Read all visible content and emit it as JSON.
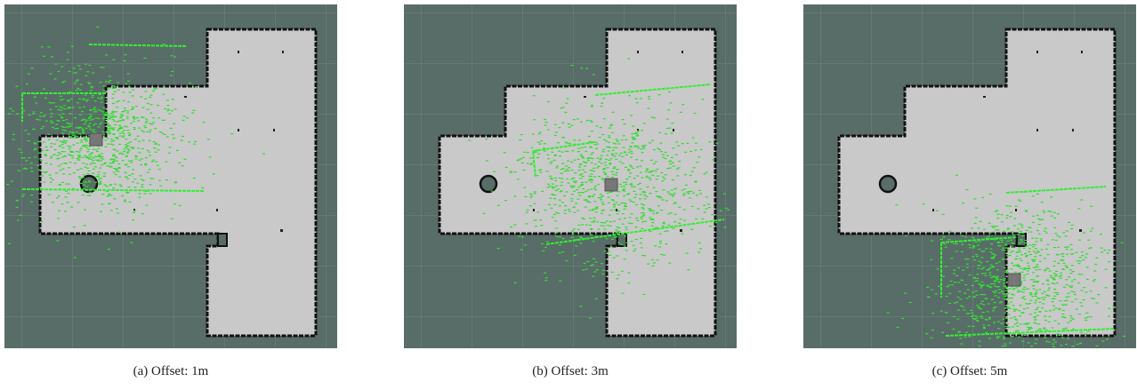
{
  "panels": [
    {
      "caption": "(a) Offset: 1m"
    },
    {
      "caption": "(b) Offset: 3m"
    },
    {
      "caption": "(c) Offset: 5m"
    }
  ]
}
